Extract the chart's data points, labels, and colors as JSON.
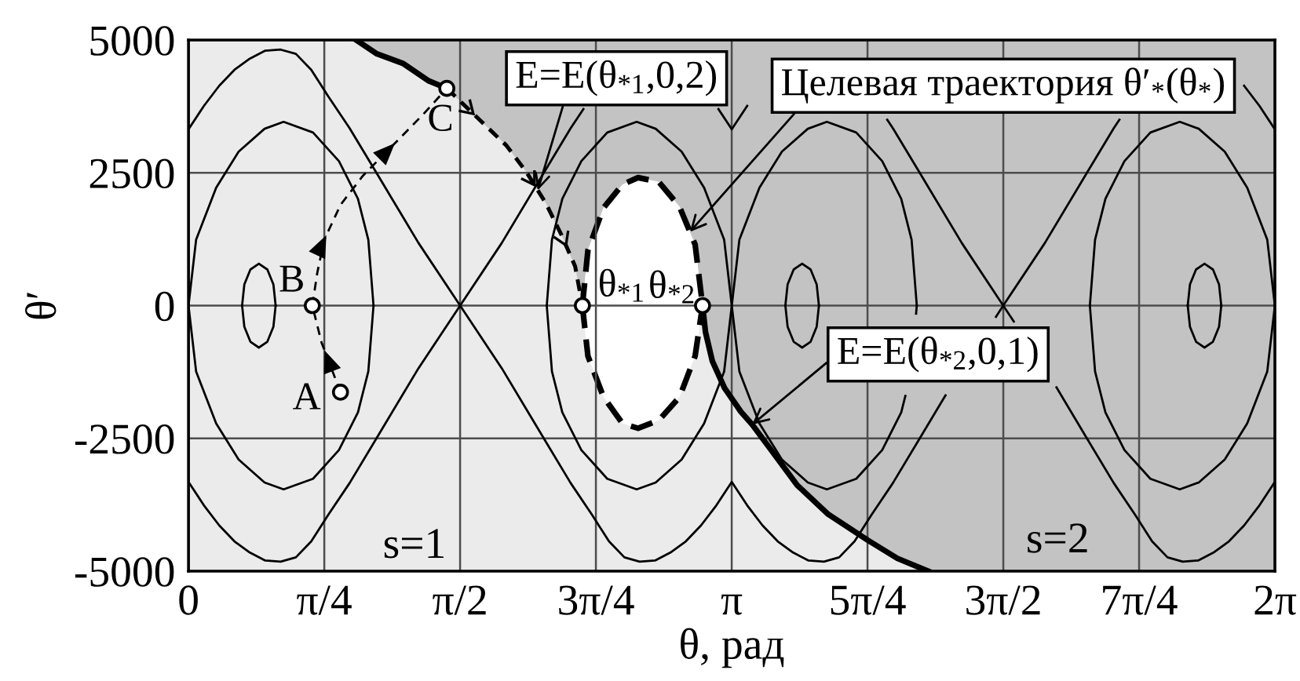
{
  "chart_data": {
    "type": "line",
    "xlabel": "θ, рад",
    "ylabel": "θ′",
    "xlim": [
      0,
      6.2832
    ],
    "ylim": [
      -5000,
      5000
    ],
    "xticks": [
      0,
      {
        "value": 0.7854,
        "label": "π/4"
      },
      {
        "value": 1.5708,
        "label": "π/2"
      },
      {
        "value": 2.3562,
        "label": "3π/4"
      },
      {
        "value": 3.1416,
        "label": "π"
      },
      {
        "value": 3.927,
        "label": "5π/4"
      },
      {
        "value": 4.7124,
        "label": "3π/2"
      },
      {
        "value": 5.4978,
        "label": "7π/4"
      },
      {
        "value": 6.2832,
        "label": "2π"
      }
    ],
    "yticks": [
      -5000,
      -2500,
      0,
      2500,
      5000
    ],
    "grid": true,
    "series": [
      {
        "color": "#000000",
        "x": [
          0,
          0.089,
          0.178,
          0.266,
          0.355,
          0.444,
          0.533,
          0.621,
          0.71,
          0.808,
          0.932,
          1.1,
          1.33,
          1.571,
          1.812,
          2.042,
          2.21,
          2.334,
          2.432,
          2.521,
          2.609,
          2.698,
          2.787,
          2.876,
          2.964,
          3.053,
          3.142,
          3.231,
          3.32,
          3.408,
          3.497,
          3.586,
          3.675,
          3.763,
          3.852,
          3.95,
          4.074,
          4.242,
          4.378,
          4.472,
          4.67,
          4.712,
          4.953,
          5.183,
          5.351,
          5.384,
          5.475,
          5.573,
          5.662,
          5.75,
          5.839,
          5.928,
          6.017,
          6.105,
          6.194,
          6.283
        ],
        "values": [
          3320,
          3760,
          4140,
          4440,
          4650,
          4800,
          4820,
          4740,
          4440,
          3940,
          3340,
          2430,
          1180,
          0,
          -1180,
          -2430,
          -3340,
          -3940,
          -4440,
          -4740,
          -4820,
          -4800,
          -4650,
          -4440,
          -4140,
          -3760,
          -3320,
          -3760,
          -4140,
          -4440,
          -4650,
          -4800,
          -4820,
          -4740,
          -4440,
          -3940,
          -3340,
          -2430,
          -1690,
          null,
          -210,
          0,
          1180,
          2430,
          3340,
          3500,
          null,
          null,
          null,
          null,
          null,
          null,
          null,
          4140,
          3760,
          3320
        ]
      },
      {
        "color": "#000000",
        "x": [
          0,
          0.089,
          0.178,
          0.266,
          0.355,
          0.444,
          0.533,
          0.621,
          0.71,
          0.808,
          0.932,
          1.1,
          1.33,
          1.571,
          1.812,
          2.042,
          2.21,
          2.284,
          2.334,
          2.432,
          2.521,
          2.609,
          2.698,
          2.787,
          2.876,
          2.964,
          3.053,
          3.065,
          3.142,
          3.231,
          3.32,
          3.408,
          3.497,
          3.586,
          3.675,
          3.763,
          3.852,
          3.95,
          4.041,
          4.074,
          4.242,
          4.472,
          4.712,
          4.773,
          4.953,
          5.02,
          5.183,
          5.351,
          5.475,
          5.573,
          5.662,
          5.75,
          5.839,
          5.928,
          6.017,
          6.105,
          6.194,
          6.283
        ],
        "values": [
          -3320,
          -3760,
          -4140,
          -4440,
          -4650,
          -4800,
          -4820,
          -4740,
          -4440,
          -3940,
          -3340,
          -2430,
          -1180,
          0,
          1180,
          2430,
          3340,
          3700,
          null,
          null,
          null,
          null,
          null,
          null,
          null,
          null,
          null,
          3700,
          3320,
          3760,
          null,
          null,
          null,
          null,
          null,
          null,
          null,
          null,
          3500,
          3340,
          2430,
          1180,
          0,
          -300,
          null,
          -1540,
          -2430,
          -3340,
          -3940,
          -4440,
          -4740,
          -4820,
          -4800,
          -4650,
          -4440,
          -4140,
          -3760,
          -3320
        ]
      },
      {
        "color": "#000000",
        "x": [
          0,
          0.044,
          0.16,
          0.29,
          0.44,
          0.55,
          0.72,
          0.87,
          0.98,
          1.04,
          1.07,
          1.57,
          2.072,
          2.102,
          2.162,
          2.272,
          2.422,
          2.592,
          2.702,
          2.852,
          2.982,
          3.098,
          3.142,
          3.186,
          3.302,
          3.432,
          3.582,
          3.692,
          3.862,
          4.012,
          4.122,
          4.182,
          4.212,
          4.71,
          5.213,
          5.243,
          5.303,
          5.413,
          5.563,
          5.733,
          5.843,
          5.993,
          6.123,
          6.239,
          6.283
        ],
        "values": [
          0,
          1240,
          2220,
          2900,
          3330,
          3460,
          3260,
          2720,
          2010,
          1240,
          0,
          null,
          0,
          1240,
          2010,
          2720,
          3260,
          3460,
          3330,
          2900,
          2220,
          1240,
          0,
          1240,
          2220,
          2900,
          3330,
          3460,
          3260,
          2720,
          2010,
          1240,
          0,
          null,
          0,
          1240,
          2010,
          2720,
          3260,
          3460,
          3330,
          2900,
          2220,
          1240,
          0
        ]
      },
      {
        "color": "#000000",
        "x": [
          2.072,
          2.102,
          2.162,
          2.272,
          2.422,
          2.592,
          2.702,
          2.852,
          2.982,
          3.098,
          3.142,
          3.186,
          3.302,
          3.432,
          3.582,
          3.692,
          3.862,
          4.012,
          4.122,
          4.146,
          4.182,
          4.208,
          4.212,
          4.71,
          6.283,
          6.239,
          6.123,
          5.993,
          5.843,
          5.733,
          5.563,
          5.413,
          5.303,
          5.243,
          5.213,
          1.57,
          0,
          0.044,
          0.16,
          0.29,
          0.44,
          0.55,
          0.72,
          0.87,
          0.98,
          1.04,
          1.07
        ],
        "values": [
          0,
          -1240,
          -2010,
          -2720,
          -3260,
          -3460,
          -3330,
          -2900,
          -2220,
          -1240,
          0,
          -1240,
          -2220,
          -2900,
          -3330,
          -3460,
          -3260,
          -2720,
          -2010,
          -1700,
          null,
          -150,
          0,
          null,
          0,
          -1240,
          -2220,
          -2900,
          -3330,
          -3460,
          -3260,
          -2720,
          -2010,
          -1240,
          0,
          null,
          0,
          -1240,
          -2220,
          -2900,
          -3330,
          -3460,
          -3260,
          -2720,
          -2010,
          -1240,
          0
        ]
      },
      {
        "color": "#000000",
        "x": [
          0.31,
          0.323,
          0.358,
          0.407,
          0.456,
          0.491,
          0.504,
          2.0,
          3.452,
          3.465,
          3.5,
          3.549,
          3.598,
          3.633,
          3.646,
          4.7,
          5.779,
          5.792,
          5.827,
          5.876,
          5.925,
          5.96,
          5.973
        ],
        "values": [
          0,
          400,
          680,
          790,
          680,
          400,
          0,
          null,
          0,
          400,
          680,
          790,
          680,
          400,
          0,
          null,
          0,
          400,
          680,
          790,
          680,
          400,
          0
        ]
      },
      {
        "color": "#000000",
        "x": [
          3.452,
          3.465,
          3.5,
          3.549,
          3.598,
          3.633,
          3.646,
          4.7,
          5.973,
          5.96,
          5.925,
          5.876,
          5.827,
          5.792,
          5.779,
          2.0,
          0.31,
          0.323,
          0.358,
          0.407,
          0.456,
          0.491,
          0.504
        ],
        "values": [
          0,
          -400,
          -680,
          -790,
          -680,
          -400,
          0,
          null,
          0,
          -400,
          -680,
          -790,
          -680,
          -400,
          0,
          null,
          0,
          -400,
          -680,
          -790,
          -680,
          -400,
          0
        ]
      },
      {
        "color": "#000000",
        "x": [
          0.97,
          1.09,
          1.24,
          1.39,
          1.494
        ],
        "values": [
          5000,
          4740,
          4560,
          4230,
          4090
        ]
      },
      {
        "color": "#000000",
        "line_style": "dashed",
        "x": [
          1.494,
          1.686,
          1.837,
          1.953,
          2.068,
          2.157,
          2.236,
          2.278
        ],
        "values": [
          4090,
          3490,
          3020,
          2520,
          1920,
          1330,
          740,
          0
        ]
      },
      {
        "color": "#000000",
        "x": [
          2.973,
          2.99,
          3.03,
          3.1,
          3.195,
          3.26,
          3.37,
          3.52,
          3.7,
          3.93,
          4.1,
          4.278
        ],
        "values": [
          0,
          -500,
          -1050,
          -1550,
          -2000,
          -2240,
          -2720,
          -3380,
          -3930,
          -4420,
          -4760,
          -5000
        ]
      },
      {
        "type": "area",
        "color": "#ffffff",
        "line_style": "dashed",
        "x": [
          2.278,
          2.31,
          2.4,
          2.51,
          2.6,
          2.72,
          2.84,
          2.93,
          2.973
        ],
        "values": [
          0,
          1040,
          1840,
          2280,
          2410,
          2330,
          1860,
          1150,
          0
        ]
      },
      {
        "type": "area",
        "color": "#ffffff",
        "line_style": "dashed",
        "x": [
          2.278,
          2.31,
          2.4,
          2.51,
          2.6,
          2.72,
          2.84,
          2.93,
          2.973
        ],
        "values": [
          0,
          -950,
          -1720,
          -2220,
          -2310,
          -2160,
          -1720,
          -950,
          0
        ]
      },
      {
        "color": "#000000",
        "line_style": "dashed",
        "x": [
          0.879,
          0.77,
          0.716
        ],
        "values": [
          -1630,
          -700,
          0
        ]
      },
      {
        "color": "#000000",
        "line_style": "dashed",
        "x": [
          0.716,
          0.745,
          0.785,
          0.88,
          1.01,
          1.216,
          1.36,
          1.494
        ],
        "values": [
          0,
          620,
          1240,
          1900,
          2450,
          3130,
          3610,
          4090
        ]
      },
      {
        "type": "scatter",
        "color": "#ffffff",
        "marker": "circle",
        "x": [
          0.879,
          0.716,
          1.494,
          2.278,
          2.973
        ],
        "values": [
          -1630,
          0,
          4090,
          0,
          0
        ]
      }
    ],
    "annotations": [
      {
        "text": "E=E(θ$_{*1}$,0,2)",
        "x": 2.02,
        "y": 2170
      },
      {
        "text": "Целевая траектория θ′$_{*}$(θ$_{*}$)",
        "x": 2.9,
        "y": 1390
      },
      {
        "text": "E=E(θ$_{*2}$,0,1)",
        "x": 3.26,
        "y": -2240
      },
      {
        "text": "A",
        "x": 0.879,
        "y": -1630
      },
      {
        "text": "B",
        "x": 0.716,
        "y": 0
      },
      {
        "text": "C",
        "x": 1.494,
        "y": 4090
      },
      {
        "text": "θ$_{*1}$",
        "x": 2.278,
        "y": 0
      },
      {
        "text": "θ$_{*2}$",
        "x": 2.973,
        "y": 0
      },
      "s=1",
      "s=2"
    ]
  }
}
